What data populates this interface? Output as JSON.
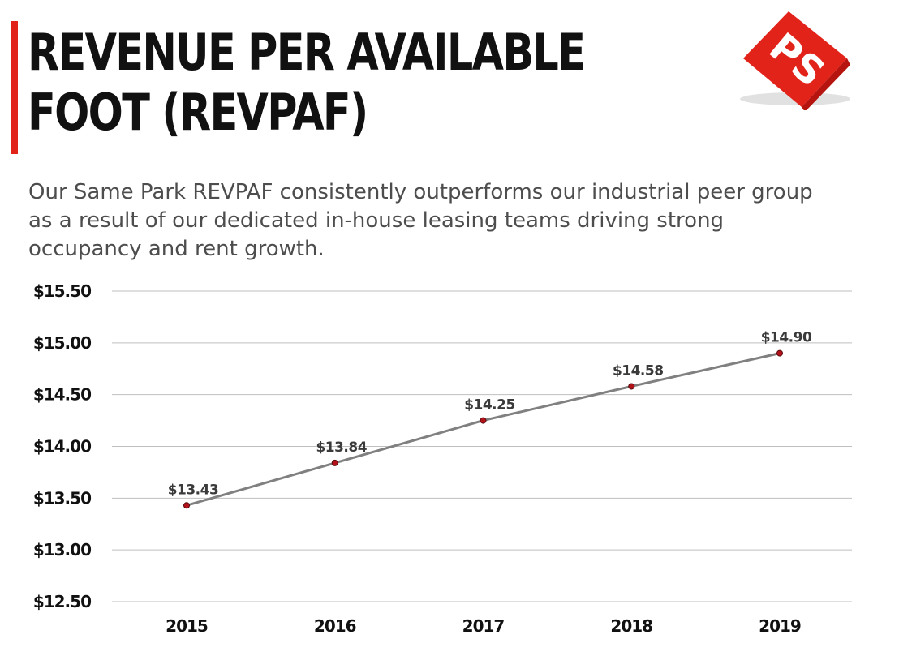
{
  "header": {
    "title_line1": "REVENUE PER AVAILABLE",
    "title_line2": "FOOT (REVPAF)",
    "subtitle": "Our Same Park REVPAF consistently outperforms our industrial peer group as a result of our dedicated in-house leasing teams driving strong occupancy and rent growth.",
    "logo_text": "PS"
  },
  "colors": {
    "accent": "#e2231a",
    "line": "#808080",
    "marker": "#b3121a",
    "grid": "#bfbfbf"
  },
  "chart_data": {
    "type": "line",
    "title": "",
    "xlabel": "",
    "ylabel": "",
    "categories": [
      "2015",
      "2016",
      "2017",
      "2018",
      "2019"
    ],
    "values": [
      13.43,
      13.84,
      14.25,
      14.58,
      14.9
    ],
    "data_labels": [
      "$13.43",
      "$13.84",
      "$14.25",
      "$14.58",
      "$14.90"
    ],
    "ylim": [
      12.5,
      15.5
    ],
    "yticks": [
      15.5,
      15.0,
      14.5,
      14.0,
      13.5,
      13.0,
      12.5
    ],
    "ytick_labels": [
      "$15.50",
      "$15.00",
      "$14.50",
      "$14.00",
      "$13.50",
      "$13.00",
      "$12.50"
    ],
    "grid": true,
    "legend": "none"
  }
}
